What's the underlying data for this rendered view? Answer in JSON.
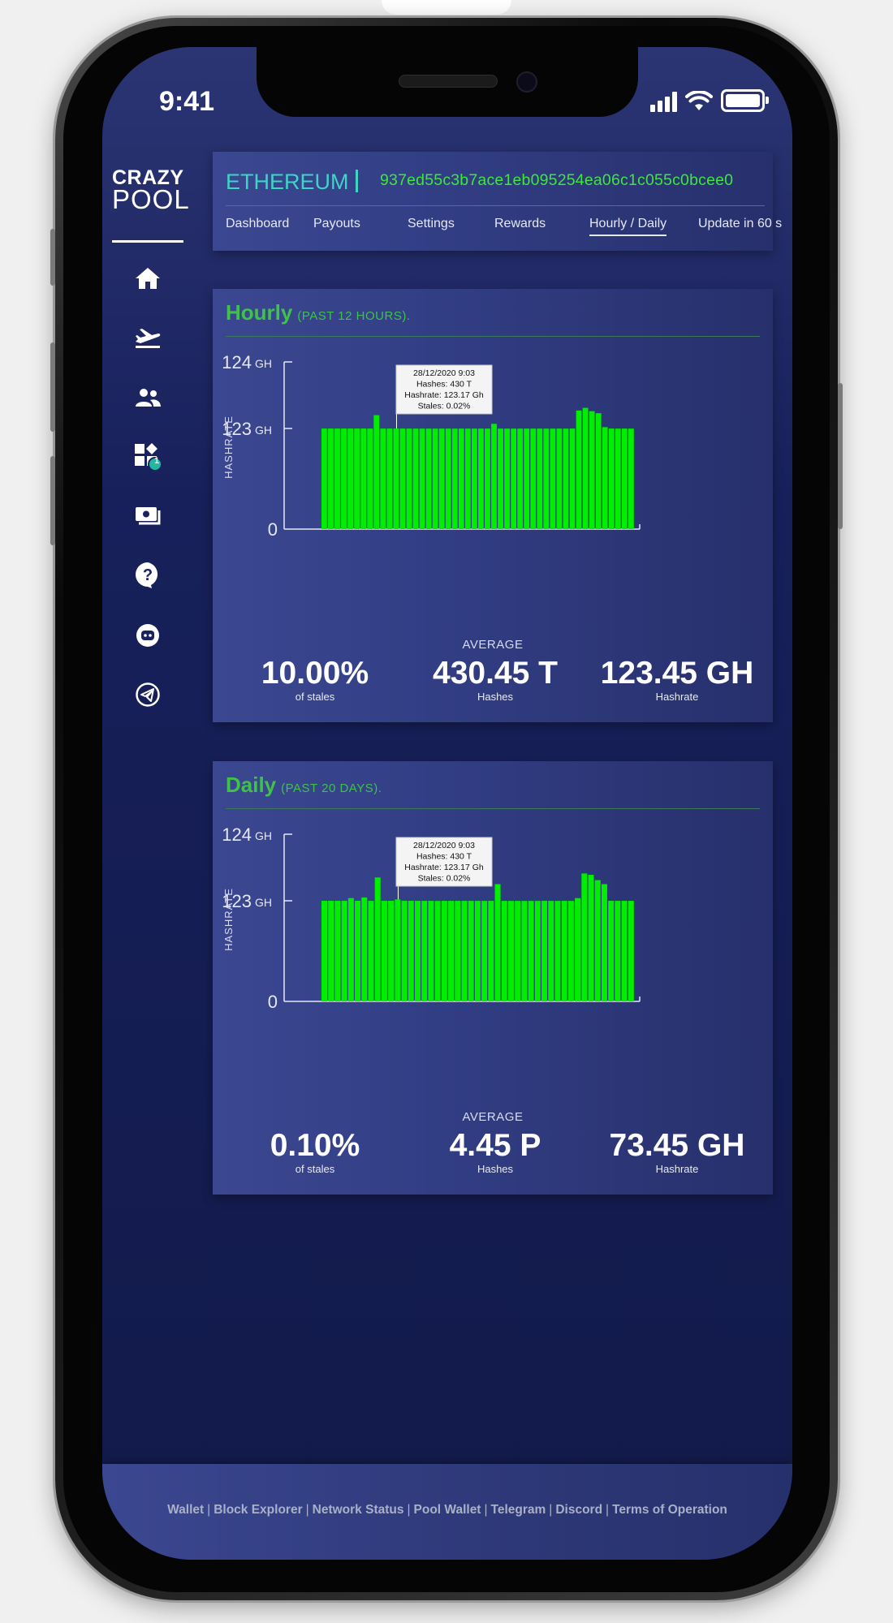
{
  "status_bar": {
    "time": "9:41"
  },
  "sidebar": {
    "logo_line1": "CRAZY",
    "logo_line2": "POOL",
    "items": [
      {
        "icon": "home-icon"
      },
      {
        "icon": "airplane-takeoff-icon"
      },
      {
        "icon": "group-icon"
      },
      {
        "icon": "widgets-icon",
        "badge": "1"
      },
      {
        "icon": "payments-icon"
      },
      {
        "icon": "help-icon"
      },
      {
        "icon": "discord-icon"
      },
      {
        "icon": "telegram-icon"
      }
    ]
  },
  "header": {
    "coin": "ETHEREUM",
    "address": "937ed55c3b7ace1eb095254ea06c1c055c0bcee0",
    "tabs": [
      "Dashboard",
      "Payouts",
      "Settings",
      "Rewards",
      "Hourly / Daily",
      "Update in 60 s"
    ],
    "active_tab": "Hourly / Daily"
  },
  "colors": {
    "accent": "#3ec24a",
    "bars": "#00ee00",
    "coin": "#3dd6c6",
    "address": "#3ee63e"
  },
  "charts": {
    "hourly": {
      "title": "Hourly",
      "subtitle": "(PAST 12 HOURS).",
      "average_label": "AVERAGE",
      "stats": [
        {
          "value": "10.00%",
          "unit": "of stales"
        },
        {
          "value": "430.45 T",
          "unit": "Hashes"
        },
        {
          "value": "123.45 GH",
          "unit": "Hashrate"
        }
      ],
      "tooltip": [
        "28/12/2020 9:03",
        "Hashes: 430 T",
        "Hashrate: 123.17 Gh",
        "Stales: 0.02%"
      ]
    },
    "daily": {
      "title": "Daily",
      "subtitle": "(PAST 20 DAYS).",
      "average_label": "AVERAGE",
      "stats": [
        {
          "value": "0.10%",
          "unit": "of stales"
        },
        {
          "value": "4.45 P",
          "unit": "Hashes"
        },
        {
          "value": "73.45 GH",
          "unit": "Hashrate"
        }
      ],
      "tooltip": [
        "28/12/2020 9:03",
        "Hashes: 430 T",
        "Hashrate: 123.17 Gh",
        "Stales: 0.02%"
      ]
    }
  },
  "chart_data": [
    {
      "type": "bar",
      "title": "Hourly",
      "ylabel": "HASHRATE",
      "y_ticks": [
        {
          "label": "0",
          "unit": ""
        },
        {
          "label": "123",
          "unit": "GH"
        },
        {
          "label": "124",
          "unit": "GH"
        }
      ],
      "values": [
        122.9,
        122.93,
        122.92,
        122.95,
        122.91,
        122.93,
        122.96,
        122.91,
        123.2,
        122.88,
        122.91,
        122.92,
        122.89,
        122.87,
        122.86,
        122.84,
        122.86,
        122.8,
        122.86,
        122.84,
        122.84,
        122.84,
        122.83,
        122.83,
        122.83,
        122.85,
        123.07,
        122.84,
        122.82,
        122.82,
        122.82,
        122.83,
        122.82,
        122.87,
        122.82,
        122.82,
        122.9,
        122.86,
        122.93,
        123.27,
        123.31,
        123.26,
        123.23,
        123.02,
        122.92,
        122.85,
        122.9,
        122.85
      ],
      "highlight_index": 11
    },
    {
      "type": "bar",
      "title": "Daily",
      "ylabel": "HASHRATE",
      "y_ticks": [
        {
          "label": "0",
          "unit": ""
        },
        {
          "label": "123",
          "unit": "GH"
        },
        {
          "label": "124",
          "unit": "GH"
        }
      ],
      "values": [
        122.98,
        123.0,
        122.99,
        122.97,
        123.04,
        123.0,
        123.05,
        122.97,
        123.35,
        122.97,
        123.0,
        123.02,
        122.97,
        122.95,
        122.92,
        122.9,
        122.92,
        122.82,
        122.92,
        122.9,
        122.9,
        122.88,
        122.88,
        122.88,
        122.88,
        122.96,
        123.25,
        122.9,
        122.85,
        122.86,
        122.84,
        122.86,
        122.84,
        122.97,
        122.84,
        122.85,
        122.95,
        122.86,
        123.04,
        123.41,
        123.39,
        123.31,
        123.25,
        123.0,
        122.94,
        122.97,
        122.94
      ],
      "highlight_index": 11
    }
  ],
  "footer": {
    "links": [
      "Wallet",
      "Block Explorer",
      "Network Status",
      "Pool Wallet",
      "Telegram",
      "Discord",
      "Terms of Operation"
    ]
  }
}
